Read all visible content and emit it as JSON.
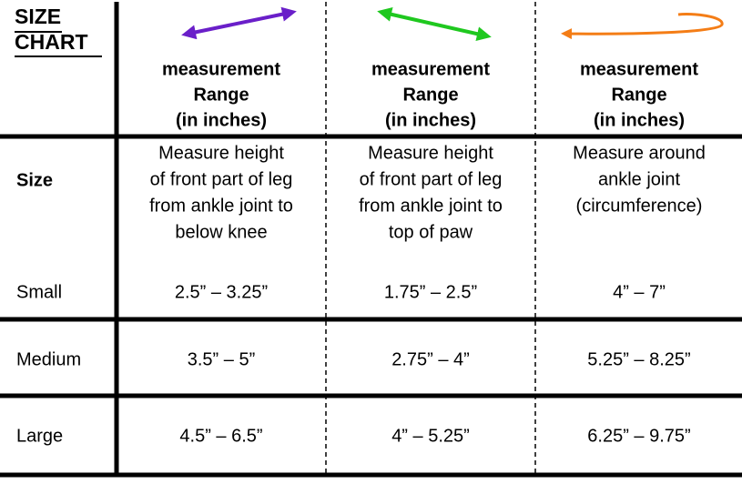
{
  "title": [
    "SIZE",
    "CHART"
  ],
  "columns": [
    {
      "heading": [
        "measurement",
        "Range",
        "(in inches)"
      ],
      "description": [
        "Measure height",
        "of front part of leg",
        "from ankle joint to",
        "below knee"
      ]
    },
    {
      "heading": [
        "measurement",
        "Range",
        "(in inches)"
      ],
      "description": [
        "Measure height",
        "of front part of leg",
        "from ankle joint to",
        "top of paw"
      ]
    },
    {
      "heading": [
        "measurement",
        "Range",
        "(in inches)"
      ],
      "description": [
        "Measure around",
        "ankle joint",
        "(circumference)"
      ]
    }
  ],
  "size_label": "Size",
  "rows": [
    [
      "Small",
      "2.5” – 3.25”",
      "1.75” – 2.5”",
      "4” – 7”"
    ],
    [
      "Medium",
      "3.5” – 5”",
      "2.75” – 4”",
      "5.25” – 8.25”"
    ],
    [
      "Large",
      "4.5” – 6.5”",
      "4” – 5.25”",
      "6.25” – 9.75”"
    ]
  ]
}
